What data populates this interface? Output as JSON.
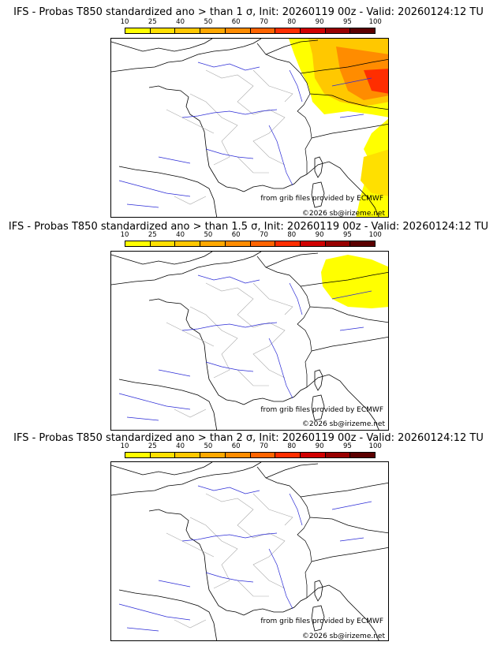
{
  "colorbar": {
    "ticks": [
      "10",
      "25",
      "40",
      "50",
      "60",
      "70",
      "80",
      "90",
      "95",
      "100"
    ],
    "colors": [
      "#ffff00",
      "#ffe000",
      "#ffc800",
      "#ffa800",
      "#ff8c00",
      "#ff6400",
      "#ff2e00",
      "#d00000",
      "#980000",
      "#5c0000"
    ]
  },
  "panels": [
    {
      "title": "IFS - Probas T850  standardized ano > than 1 σ, Init: 20260119 00z - Valid: 20260124:12 TU",
      "credit": "from grib files provided by ECMWF",
      "copyright": "©2026 sb@irizeme.net",
      "anomaly_extent": "large"
    },
    {
      "title": "IFS - Probas T850  standardized ano > than 1.5 σ, Init: 20260119 00z - Valid: 20260124:12 TU",
      "credit": "from grib files provided by ECMWF",
      "copyright": "©2026 sb@irizeme.net",
      "anomaly_extent": "small"
    },
    {
      "title": "IFS - Probas T850  standardized ano > than 2 σ, Init: 20260119 00z - Valid: 20260124:12 TU",
      "credit": "from grib files provided by ECMWF",
      "copyright": "©2026 sb@irizeme.net",
      "anomaly_extent": "none"
    }
  ]
}
